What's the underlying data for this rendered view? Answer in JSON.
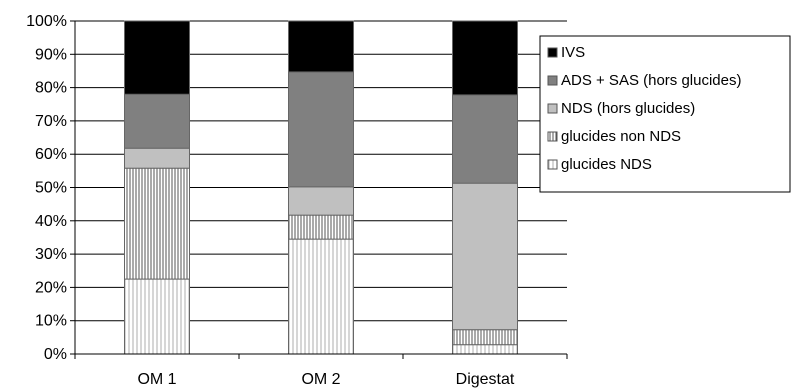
{
  "chart_data": {
    "type": "bar",
    "stacked": true,
    "normalized": true,
    "categories": [
      "OM 1",
      "OM 2",
      "Digestat"
    ],
    "series": [
      {
        "name": "glucides NDS",
        "values": [
          22.5,
          34.5,
          2.8
        ],
        "color": "#ffffff",
        "pattern": "vertical-lines-light"
      },
      {
        "name": "glucides non NDS",
        "values": [
          33.3,
          7.2,
          4.5
        ],
        "color": "#ffffff",
        "pattern": "vertical-lines-dense"
      },
      {
        "name": "NDS (hors glucides)",
        "values": [
          6.0,
          8.5,
          44.0
        ],
        "color": "#c0c0c0"
      },
      {
        "name": "ADS + SAS (hors glucides)",
        "values": [
          16.2,
          34.5,
          26.5
        ],
        "color": "#808080"
      },
      {
        "name": "IVS",
        "values": [
          22.0,
          15.3,
          22.2
        ],
        "color": "#000000"
      }
    ],
    "legend_order": [
      "IVS",
      "ADS + SAS (hors glucides)",
      "NDS (hors glucides)",
      "glucides non NDS",
      "glucides NDS"
    ],
    "legend_labels": {
      "IVS": "IVS",
      "ADS + SAS (hors glucides)": "ADS + SAS (hors glucides)",
      "NDS (hors glucides)": "NDS (hors glucides)",
      "glucides non NDS": "glucides non NDS",
      "glucides NDS": "glucides NDS"
    },
    "y_ticks": [
      "0%",
      "10%",
      "20%",
      "30%",
      "40%",
      "50%",
      "60%",
      "70%",
      "80%",
      "90%",
      "100%"
    ],
    "ylim": [
      0,
      100
    ],
    "grid": true,
    "legend_position": "right"
  }
}
